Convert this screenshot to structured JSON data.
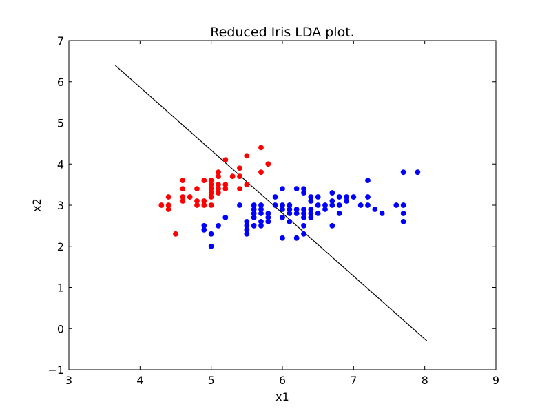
{
  "chart_data": {
    "type": "scatter",
    "title": "Reduced Iris LDA plot.",
    "xlabel": "x1",
    "ylabel": "x2",
    "xlim": [
      3,
      9
    ],
    "ylim": [
      -1,
      7
    ],
    "xticks": [
      3,
      4,
      5,
      6,
      7,
      8,
      9
    ],
    "xtick_labels": [
      "3",
      "4",
      "5",
      "6",
      "7",
      "8",
      "9"
    ],
    "yticks": [
      -1,
      0,
      1,
      2,
      3,
      4,
      5,
      6,
      7
    ],
    "ytick_labels": [
      "−1",
      "0",
      "1",
      "2",
      "3",
      "4",
      "5",
      "6",
      "7"
    ],
    "grid": false,
    "series": [
      {
        "color": "#ff0000",
        "points": [
          [
            4.3,
            3.0
          ],
          [
            4.4,
            3.2
          ],
          [
            4.4,
            3.0
          ],
          [
            4.4,
            2.9
          ],
          [
            4.5,
            2.3
          ],
          [
            4.6,
            3.6
          ],
          [
            4.6,
            3.4
          ],
          [
            4.6,
            3.2
          ],
          [
            4.6,
            3.1
          ],
          [
            4.7,
            3.2
          ],
          [
            4.8,
            3.4
          ],
          [
            4.8,
            3.1
          ],
          [
            4.8,
            3.0
          ],
          [
            4.9,
            3.6
          ],
          [
            4.9,
            3.1
          ],
          [
            4.9,
            3.0
          ],
          [
            5.0,
            3.6
          ],
          [
            5.0,
            3.5
          ],
          [
            5.0,
            3.4
          ],
          [
            5.0,
            3.3
          ],
          [
            5.0,
            3.2
          ],
          [
            5.0,
            3.0
          ],
          [
            5.1,
            3.8
          ],
          [
            5.1,
            3.7
          ],
          [
            5.1,
            3.5
          ],
          [
            5.1,
            3.4
          ],
          [
            5.1,
            3.3
          ],
          [
            5.2,
            4.1
          ],
          [
            5.2,
            3.5
          ],
          [
            5.2,
            3.4
          ],
          [
            5.3,
            3.7
          ],
          [
            5.4,
            3.9
          ],
          [
            5.4,
            3.7
          ],
          [
            5.4,
            3.4
          ],
          [
            5.5,
            4.2
          ],
          [
            5.5,
            3.5
          ],
          [
            5.7,
            4.4
          ],
          [
            5.7,
            3.8
          ],
          [
            5.8,
            4.0
          ]
        ]
      },
      {
        "color": "#0000ff",
        "points": [
          [
            4.9,
            2.5
          ],
          [
            4.9,
            2.4
          ],
          [
            5.0,
            2.3
          ],
          [
            5.0,
            2.0
          ],
          [
            5.1,
            2.5
          ],
          [
            5.2,
            2.7
          ],
          [
            5.4,
            3.0
          ],
          [
            5.5,
            2.6
          ],
          [
            5.5,
            2.5
          ],
          [
            5.5,
            2.4
          ],
          [
            5.5,
            2.3
          ],
          [
            5.6,
            3.0
          ],
          [
            5.6,
            2.9
          ],
          [
            5.6,
            2.8
          ],
          [
            5.6,
            2.7
          ],
          [
            5.6,
            2.5
          ],
          [
            5.7,
            3.0
          ],
          [
            5.7,
            2.9
          ],
          [
            5.7,
            2.8
          ],
          [
            5.7,
            2.6
          ],
          [
            5.7,
            2.5
          ],
          [
            5.8,
            2.8
          ],
          [
            5.8,
            2.7
          ],
          [
            5.8,
            2.6
          ],
          [
            5.9,
            3.2
          ],
          [
            5.9,
            3.0
          ],
          [
            6.0,
            3.4
          ],
          [
            6.0,
            3.0
          ],
          [
            6.0,
            2.9
          ],
          [
            6.0,
            2.7
          ],
          [
            6.0,
            2.2
          ],
          [
            6.1,
            3.0
          ],
          [
            6.1,
            2.9
          ],
          [
            6.1,
            2.8
          ],
          [
            6.1,
            2.6
          ],
          [
            6.2,
            3.4
          ],
          [
            6.2,
            2.9
          ],
          [
            6.2,
            2.8
          ],
          [
            6.2,
            2.2
          ],
          [
            6.3,
            3.4
          ],
          [
            6.3,
            3.3
          ],
          [
            6.3,
            2.9
          ],
          [
            6.3,
            2.8
          ],
          [
            6.3,
            2.7
          ],
          [
            6.3,
            2.5
          ],
          [
            6.3,
            2.3
          ],
          [
            6.4,
            3.2
          ],
          [
            6.4,
            3.1
          ],
          [
            6.4,
            2.9
          ],
          [
            6.4,
            2.8
          ],
          [
            6.4,
            2.7
          ],
          [
            6.5,
            3.2
          ],
          [
            6.5,
            3.0
          ],
          [
            6.5,
            2.8
          ],
          [
            6.6,
            3.0
          ],
          [
            6.6,
            2.9
          ],
          [
            6.7,
            3.3
          ],
          [
            6.7,
            3.1
          ],
          [
            6.7,
            3.0
          ],
          [
            6.7,
            2.5
          ],
          [
            6.8,
            3.2
          ],
          [
            6.8,
            3.0
          ],
          [
            6.8,
            2.8
          ],
          [
            6.9,
            3.2
          ],
          [
            6.9,
            3.1
          ],
          [
            7.0,
            3.2
          ],
          [
            7.1,
            3.0
          ],
          [
            7.2,
            3.6
          ],
          [
            7.2,
            3.2
          ],
          [
            7.2,
            3.0
          ],
          [
            7.3,
            2.9
          ],
          [
            7.4,
            2.8
          ],
          [
            7.6,
            3.0
          ],
          [
            7.7,
            3.8
          ],
          [
            7.7,
            3.0
          ],
          [
            7.7,
            2.8
          ],
          [
            7.7,
            2.6
          ],
          [
            7.9,
            3.8
          ]
        ]
      }
    ],
    "lines": [
      {
        "color": "#000000",
        "points": [
          [
            3.65,
            6.4
          ],
          [
            8.03,
            -0.3
          ]
        ]
      }
    ]
  }
}
